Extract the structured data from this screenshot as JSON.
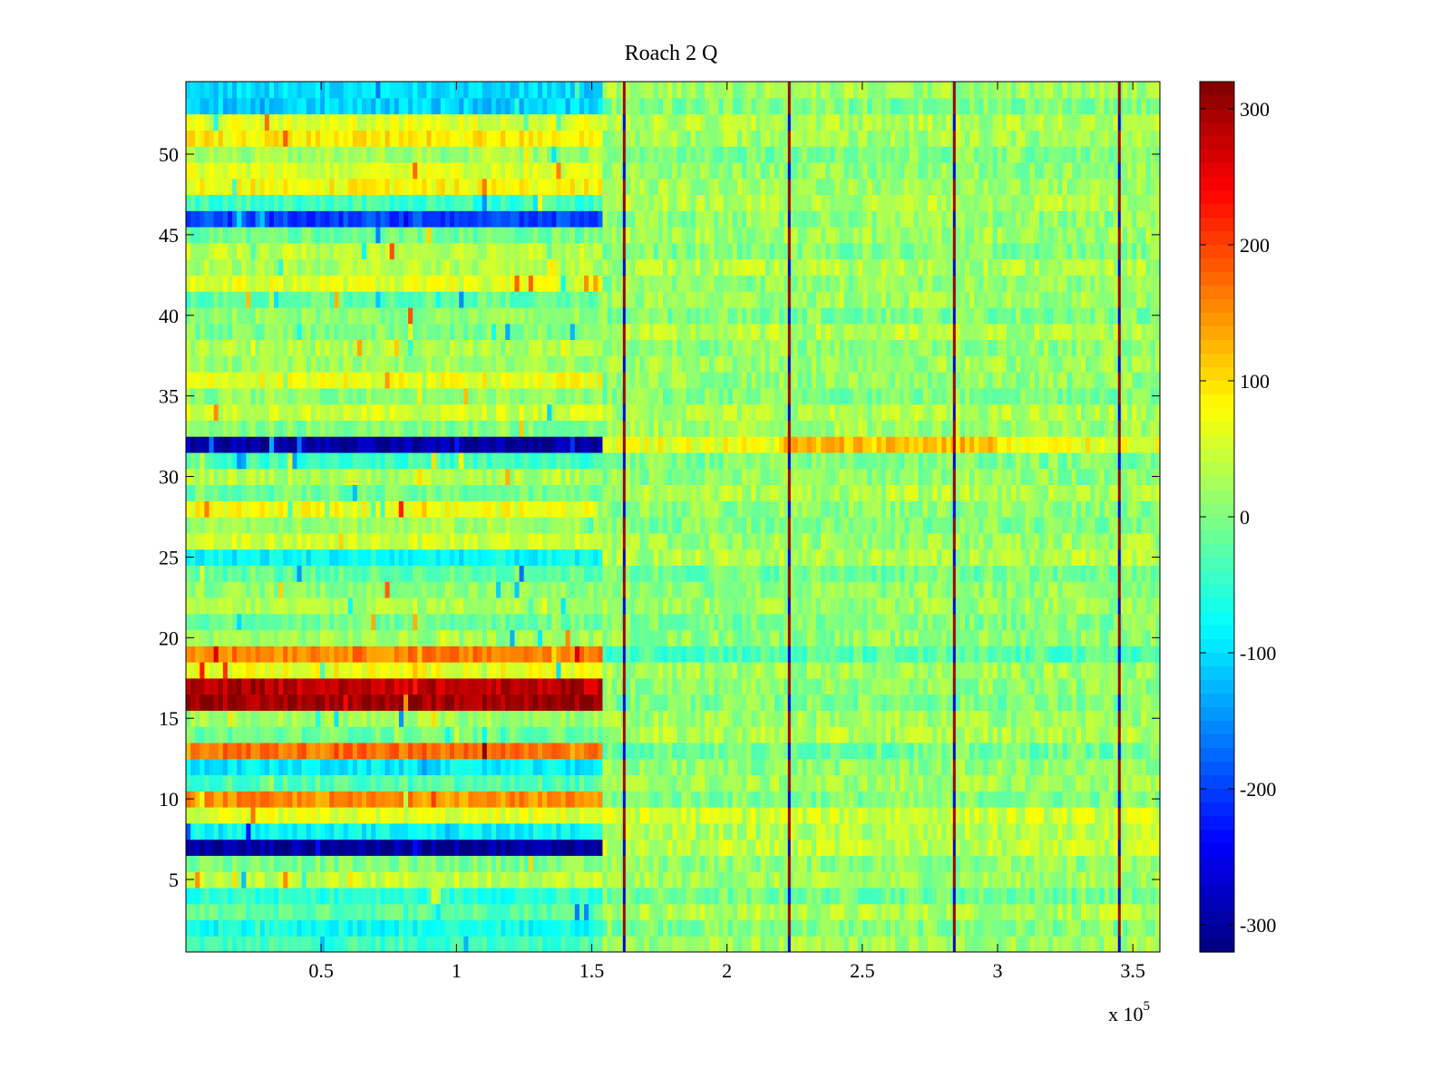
{
  "chart_data": {
    "type": "heatmap",
    "title": "Roach 2 Q",
    "xlabel": "",
    "ylabel": "",
    "x_exponent_label": "x 10",
    "x_exponent_power": "5",
    "xlim": [
      0,
      3.6
    ],
    "ylim": [
      0.5,
      54.5
    ],
    "x_ticks": [
      0.5,
      1,
      1.5,
      2,
      2.5,
      3,
      3.5
    ],
    "x_tick_labels": [
      "0.5",
      "1",
      "1.5",
      "2",
      "2.5",
      "3",
      "3.5"
    ],
    "y_ticks": [
      5,
      10,
      15,
      20,
      25,
      30,
      35,
      40,
      45,
      50
    ],
    "y_tick_labels": [
      "5",
      "10",
      "15",
      "20",
      "25",
      "30",
      "35",
      "40",
      "45",
      "50"
    ],
    "colormap": "jet",
    "clim": [
      -320,
      320
    ],
    "colorbar_ticks": [
      -300,
      -200,
      -100,
      0,
      100,
      200,
      300
    ],
    "colorbar_tick_labels": [
      "-300",
      "-200",
      "-100",
      "0",
      "100",
      "200",
      "300"
    ],
    "colorbar_position": "right",
    "n_rows": 54,
    "segment1_end": 1.54,
    "segment1_row_means": [
      -40,
      -70,
      -20,
      -55,
      40,
      0,
      -300,
      -80,
      60,
      150,
      -30,
      -90,
      170,
      -10,
      20,
      300,
      280,
      70,
      160,
      20,
      -10,
      30,
      10,
      -20,
      -80,
      50,
      20,
      70,
      -10,
      30,
      -40,
      -300,
      0,
      50,
      10,
      70,
      20,
      30,
      0,
      10,
      -20,
      60,
      30,
      40,
      -10,
      -200,
      -40,
      80,
      60,
      20,
      90,
      60,
      -110,
      -100
    ],
    "segment2_row_means": [
      20,
      0,
      30,
      -10,
      20,
      10,
      40,
      30,
      50,
      0,
      20,
      10,
      -10,
      30,
      20,
      0,
      10,
      20,
      -30,
      10,
      0,
      20,
      10,
      -10,
      30,
      20,
      0,
      10,
      30,
      10,
      0,
      70,
      20,
      30,
      0,
      10,
      20,
      10,
      30,
      0,
      20,
      10,
      30,
      0,
      20,
      10,
      30,
      20,
      10,
      0,
      20,
      30,
      0,
      20
    ],
    "overrides": [
      {
        "row": 32,
        "x_start": 2.2,
        "x_end": 3.0,
        "value": 120
      }
    ],
    "vertical_lines": [
      1.62,
      2.23,
      2.84,
      3.45
    ]
  }
}
